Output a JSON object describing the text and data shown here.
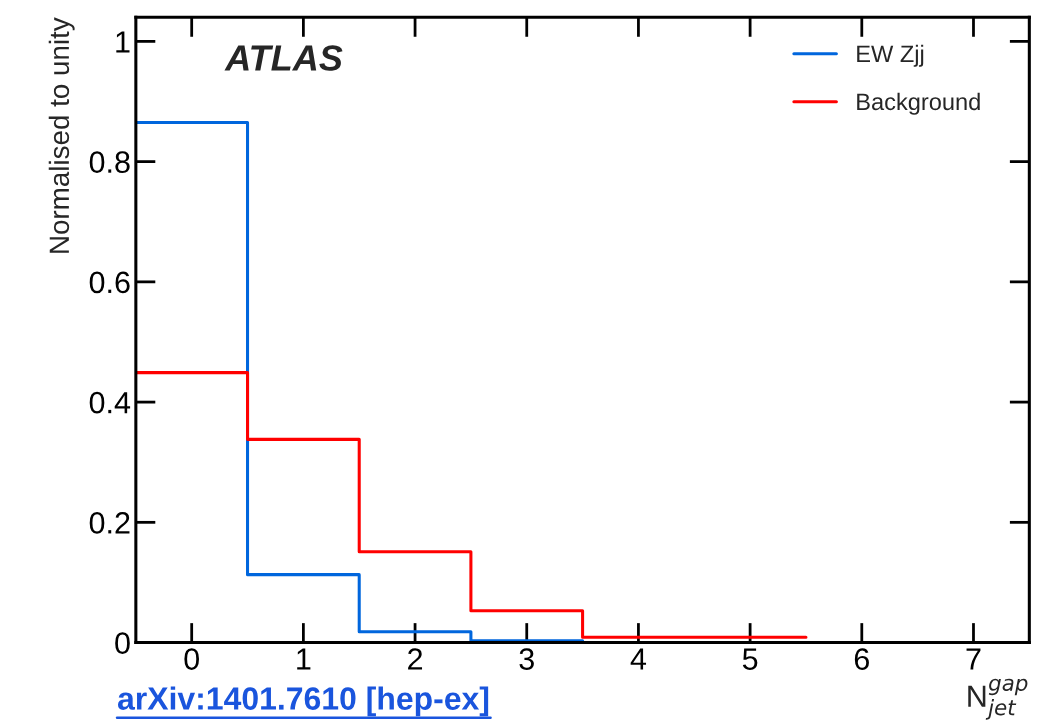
{
  "chart_data": {
    "type": "histogram",
    "xlabel": "N$^{gap}$$_{jet}$",
    "ylabel": "Normalised to unity",
    "bins": [
      -0.5,
      0.5,
      1.5,
      2.5,
      3.5,
      4.5,
      5.5
    ],
    "series": [
      {
        "name": "EW Zjj",
        "color": "#0066dd",
        "values": [
          0.865,
          0.113,
          0.018,
          0.003,
          0,
          0
        ]
      },
      {
        "name": "Background",
        "color": "#ff0000",
        "values": [
          0.449,
          0.338,
          0.151,
          0.053,
          0.009,
          0.009
        ]
      }
    ],
    "xlim": [
      -0.5,
      7.5
    ],
    "xticks": [
      0,
      1,
      2,
      3,
      4,
      5,
      6,
      7
    ],
    "ylim": [
      0,
      1.04
    ],
    "yticks": [
      0,
      0.2,
      0.4,
      0.6,
      0.8,
      1
    ],
    "legend": "top right",
    "grid": false,
    "annotations": [
      "ATLAS",
      "arXiv:1401.7610 [hep-ex]"
    ]
  }
}
